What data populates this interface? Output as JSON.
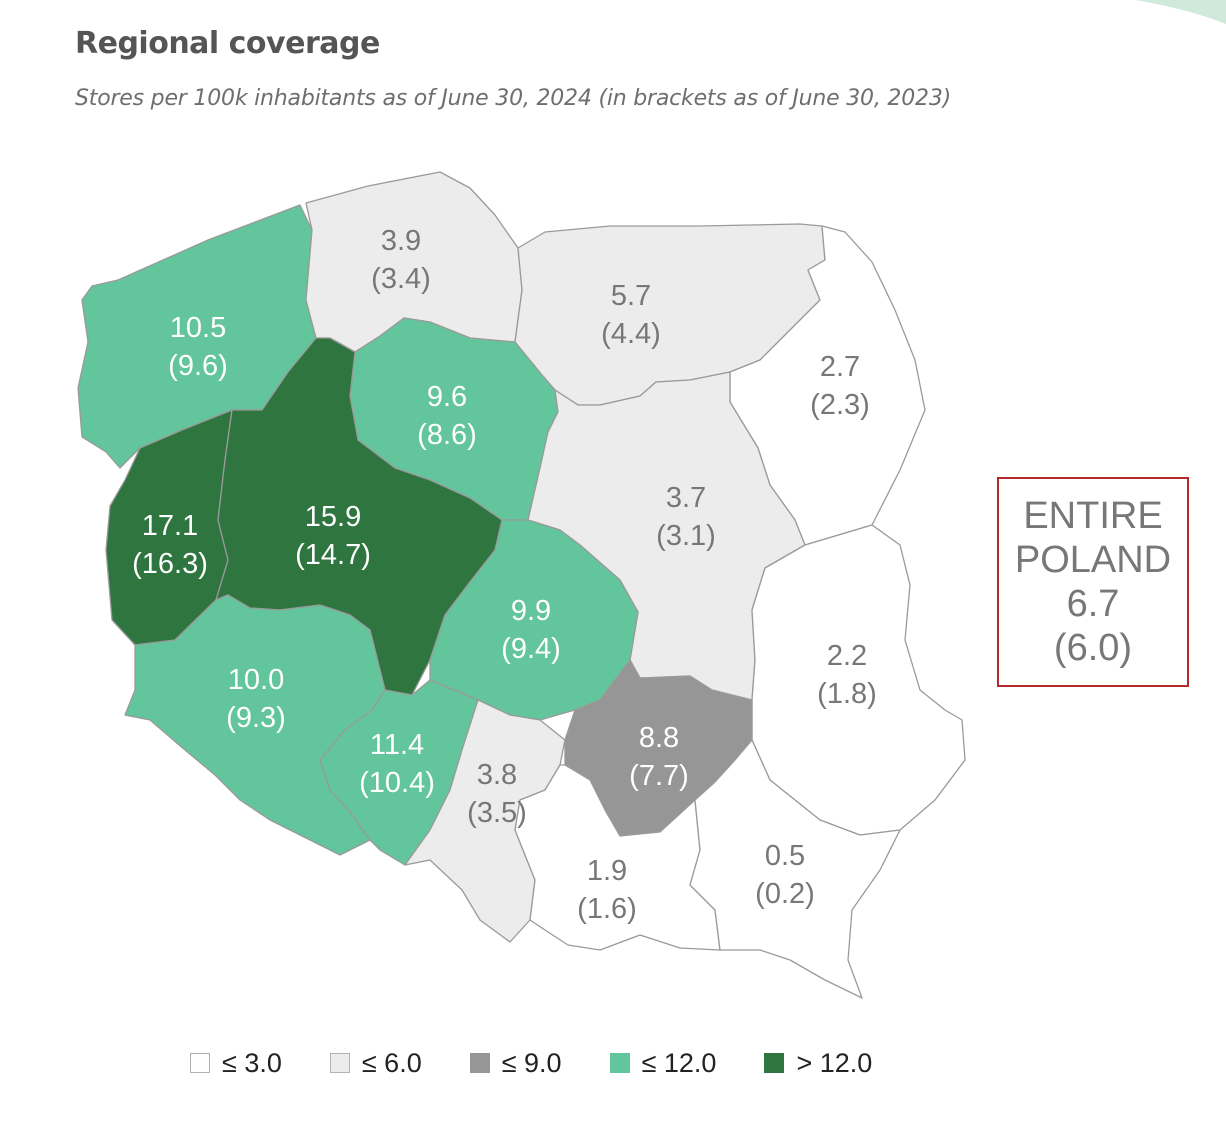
{
  "title": "Regional coverage",
  "subtitle": "Stores per 100k inhabitants as of June 30, 2024 (in brackets as of June 30, 2023)",
  "colors": {
    "bin_le3": "#ffffff",
    "bin_le6": "#ececec",
    "bin_le9": "#969696",
    "bin_le12": "#62c59c",
    "bin_gt12": "#2f7540",
    "border": "#9a9a9a",
    "label_dark": "#777777",
    "label_light": "#ffffff",
    "box_border": "#b22a2a"
  },
  "regions": [
    {
      "id": "zachodniopomorskie",
      "value": "10.5",
      "prev": "(9.6)",
      "bin": "le12"
    },
    {
      "id": "pomorskie",
      "value": "3.9",
      "prev": "(3.4)",
      "bin": "le6"
    },
    {
      "id": "warminsko-mazurskie",
      "value": "5.7",
      "prev": "(4.4)",
      "bin": "le6"
    },
    {
      "id": "podlaskie",
      "value": "2.7",
      "prev": "(2.3)",
      "bin": "le3"
    },
    {
      "id": "kujawsko-pomorskie",
      "value": "9.6",
      "prev": "(8.6)",
      "bin": "le12"
    },
    {
      "id": "lubuskie",
      "value": "17.1",
      "prev": "(16.3)",
      "bin": "gt12"
    },
    {
      "id": "wielkopolskie",
      "value": "15.9",
      "prev": "(14.7)",
      "bin": "gt12"
    },
    {
      "id": "mazowieckie",
      "value": "3.7",
      "prev": "(3.1)",
      "bin": "le6"
    },
    {
      "id": "lodzkie",
      "value": "9.9",
      "prev": "(9.4)",
      "bin": "le12"
    },
    {
      "id": "lubelskie",
      "value": "2.2",
      "prev": "(1.8)",
      "bin": "le3"
    },
    {
      "id": "dolnoslaskie",
      "value": "10.0",
      "prev": "(9.3)",
      "bin": "le12"
    },
    {
      "id": "opolskie",
      "value": "11.4",
      "prev": "(10.4)",
      "bin": "le12"
    },
    {
      "id": "slaskie",
      "value": "3.8",
      "prev": "(3.5)",
      "bin": "le6"
    },
    {
      "id": "swietokrzyskie",
      "value": "8.8",
      "prev": "(7.7)",
      "bin": "le9"
    },
    {
      "id": "malopolskie",
      "value": "1.9",
      "prev": "(1.6)",
      "bin": "le3"
    },
    {
      "id": "podkarpackie",
      "value": "0.5",
      "prev": "(0.2)",
      "bin": "le3"
    }
  ],
  "total": {
    "line1": "ENTIRE",
    "line2": "POLAND",
    "value": "6.7",
    "prev": "(6.0)"
  },
  "legend": [
    {
      "bin": "le3",
      "label": "≤ 3.0"
    },
    {
      "bin": "le6",
      "label": "≤ 6.0"
    },
    {
      "bin": "le9",
      "label": "≤ 9.0"
    },
    {
      "bin": "le12",
      "label": "≤ 12.0"
    },
    {
      "bin": "gt12",
      "label": "> 12.0"
    }
  ]
}
